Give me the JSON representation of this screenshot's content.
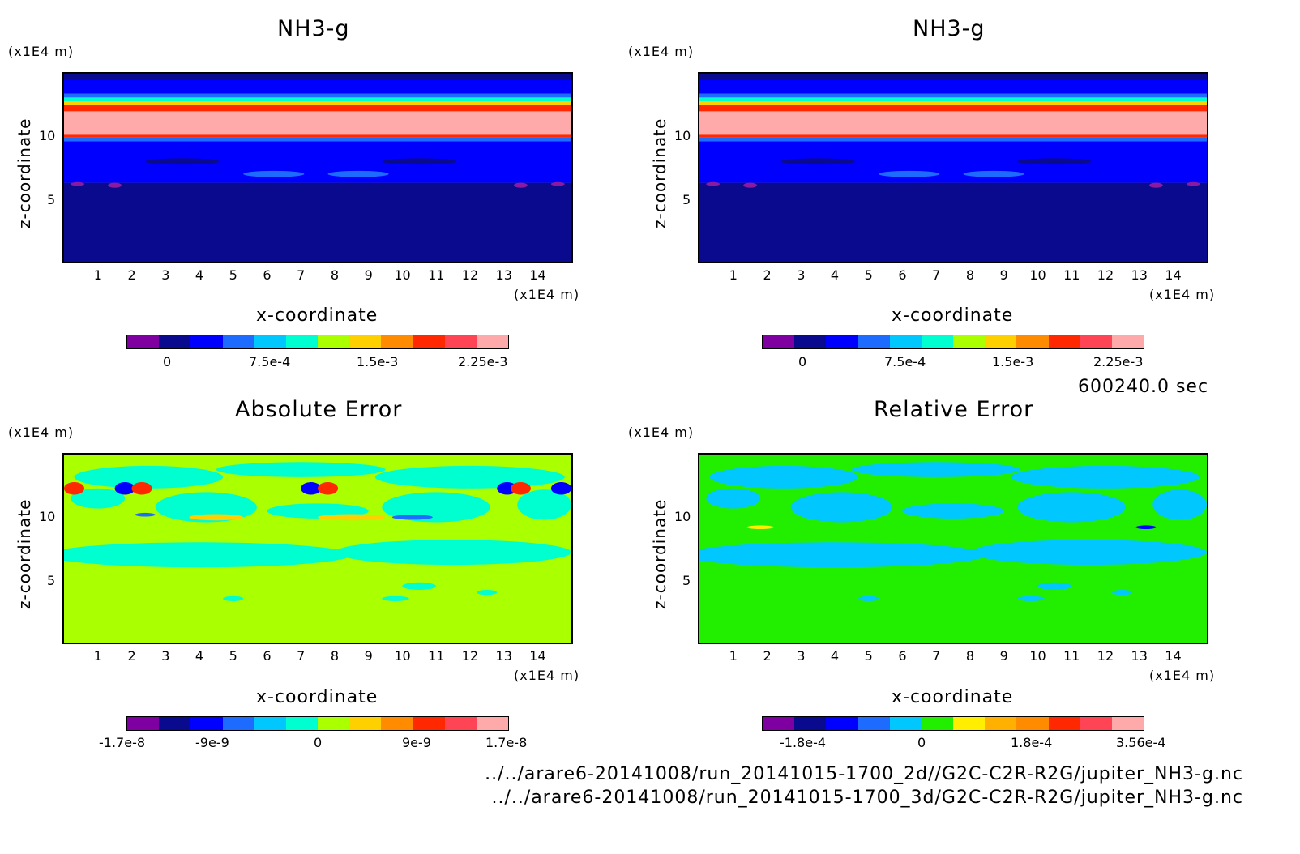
{
  "chart_data": [
    {
      "type": "heatmap",
      "title": "NH3-g",
      "xlabel": "x-coordinate",
      "ylabel": "z-coordinate",
      "x_unit": "(x1E4 m)",
      "z_unit": "(x1E4 m)",
      "x_ticks": [
        "1",
        "2",
        "3",
        "4",
        "5",
        "6",
        "7",
        "8",
        "9",
        "10",
        "11",
        "12",
        "13",
        "14"
      ],
      "z_ticks": [
        "5",
        "10"
      ],
      "xlim": [
        0,
        15
      ],
      "zlim": [
        0,
        15
      ],
      "colorbar_labels": [
        "0",
        "7.5e-4",
        "1.5e-3",
        "2.25e-3"
      ],
      "colorbar_colors": [
        "#7f00a0",
        "#0a0a8e",
        "#0000ff",
        "#1e6cff",
        "#00c8ff",
        "#00ffd0",
        "#aaff00",
        "#ffd000",
        "#ff8c00",
        "#ff2800",
        "#ff4455",
        "#ffaaaa"
      ],
      "profile_z": [
        0,
        6.2,
        6.8,
        8,
        9.5,
        10,
        10.5,
        12,
        12.8,
        13.2,
        14,
        15
      ],
      "profile_value": [
        0,
        0,
        0.00025,
        0.00028,
        0.0004,
        0.002,
        0.0024,
        0.0024,
        0.0018,
        0.0008,
        0.00025,
        0.00025
      ]
    },
    {
      "type": "heatmap",
      "title": "NH3-g",
      "xlabel": "x-coordinate",
      "ylabel": "z-coordinate",
      "x_unit": "(x1E4 m)",
      "z_unit": "(x1E4 m)",
      "x_ticks": [
        "1",
        "2",
        "3",
        "4",
        "5",
        "6",
        "7",
        "8",
        "9",
        "10",
        "11",
        "12",
        "13",
        "14"
      ],
      "z_ticks": [
        "5",
        "10"
      ],
      "xlim": [
        0,
        15
      ],
      "zlim": [
        0,
        15
      ],
      "colorbar_labels": [
        "0",
        "7.5e-4",
        "1.5e-3",
        "2.25e-3"
      ],
      "colorbar_colors": [
        "#7f00a0",
        "#0a0a8e",
        "#0000ff",
        "#1e6cff",
        "#00c8ff",
        "#00ffd0",
        "#aaff00",
        "#ffd000",
        "#ff8c00",
        "#ff2800",
        "#ff4455",
        "#ffaaaa"
      ],
      "profile_z": [
        0,
        6.2,
        6.8,
        8,
        9.5,
        10,
        10.5,
        12,
        12.8,
        13.2,
        14,
        15
      ],
      "profile_value": [
        0,
        0,
        0.00025,
        0.00028,
        0.0004,
        0.002,
        0.0024,
        0.0024,
        0.0018,
        0.0008,
        0.00025,
        0.00025
      ]
    },
    {
      "type": "heatmap",
      "title": "Absolute Error",
      "xlabel": "x-coordinate",
      "ylabel": "z-coordinate",
      "x_unit": "(x1E4 m)",
      "z_unit": "(x1E4 m)",
      "x_ticks": [
        "1",
        "2",
        "3",
        "4",
        "5",
        "6",
        "7",
        "8",
        "9",
        "10",
        "11",
        "12",
        "13",
        "14"
      ],
      "z_ticks": [
        "5",
        "10"
      ],
      "xlim": [
        0,
        15
      ],
      "zlim": [
        0,
        15
      ],
      "colorbar_labels": [
        "-1.7e-8",
        "-9e-9",
        "0",
        "9e-9",
        "1.7e-8"
      ],
      "colorbar_colors": [
        "#7f00a0",
        "#0a0a8e",
        "#0000ff",
        "#1e6cff",
        "#00c8ff",
        "#00ffd0",
        "#aaff00",
        "#ffd000",
        "#ff8c00",
        "#ff2800",
        "#ff4455",
        "#ffaaaa"
      ],
      "dominant_value": "0"
    },
    {
      "type": "heatmap",
      "title": "Relative Error",
      "xlabel": "x-coordinate",
      "ylabel": "z-coordinate",
      "x_unit": "(x1E4 m)",
      "z_unit": "(x1E4 m)",
      "x_ticks": [
        "1",
        "2",
        "3",
        "4",
        "5",
        "6",
        "7",
        "8",
        "9",
        "10",
        "11",
        "12",
        "13",
        "14"
      ],
      "z_ticks": [
        "5",
        "10"
      ],
      "xlim": [
        0,
        15
      ],
      "zlim": [
        0,
        15
      ],
      "colorbar_labels": [
        "-1.8e-4",
        "0",
        "1.8e-4",
        "3.56e-4"
      ],
      "colorbar_colors": [
        "#7f00a0",
        "#0a0a8e",
        "#0000ff",
        "#1e6cff",
        "#00c8ff",
        "#22ee00",
        "#ffee00",
        "#ffb000",
        "#ff8c00",
        "#ff2800",
        "#ff4455",
        "#ffaaaa"
      ],
      "dominant_value": "0"
    }
  ],
  "time_label": "600240.0 sec",
  "files": [
    "../../arare6-20141008/run_20141015-1700_2d//G2C-C2R-R2G/jupiter_NH3-g.nc",
    "../../arare6-20141008/run_20141015-1700_3d/G2C-C2R-R2G/jupiter_NH3-g.nc"
  ]
}
